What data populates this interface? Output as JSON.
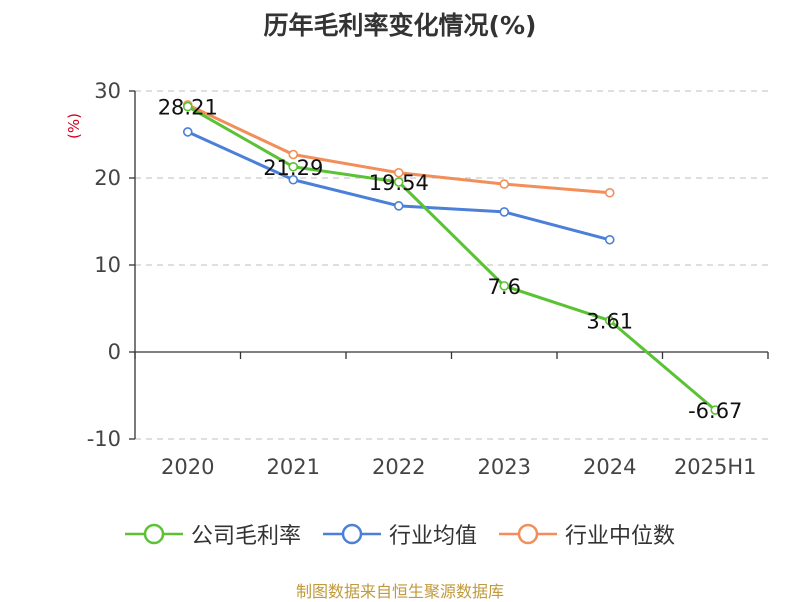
{
  "chart_data": {
    "type": "line",
    "title": "历年毛利率变化情况(%)",
    "ylabel": "(%)",
    "categories": [
      "2020",
      "2021",
      "2022",
      "2023",
      "2024",
      "2025H1"
    ],
    "ylim": [
      -10,
      30
    ],
    "yticks": [
      "30",
      "20",
      "10",
      "0",
      "-10"
    ],
    "grid": true,
    "legend_position": "bottom",
    "series": [
      {
        "name": "公司毛利率",
        "color": "#5ac234",
        "values": [
          28.21,
          21.29,
          19.54,
          7.6,
          3.61,
          -6.67
        ],
        "labels": [
          "28.21",
          "21.29",
          "19.54",
          "7.6",
          "3.61",
          "-6.67"
        ]
      },
      {
        "name": "行业均值",
        "color": "#4b7fd8",
        "values": [
          25.3,
          19.8,
          16.8,
          16.1,
          12.9,
          null
        ]
      },
      {
        "name": "行业中位数",
        "color": "#f28e5a",
        "values": [
          28.4,
          22.7,
          20.6,
          19.3,
          18.3,
          null
        ]
      }
    ]
  },
  "colors": {
    "axis": "#333333",
    "grid": "#cccccc",
    "unit": "#d0021b",
    "source": "#c09a3c"
  },
  "source": "制图数据来自恒生聚源数据库"
}
